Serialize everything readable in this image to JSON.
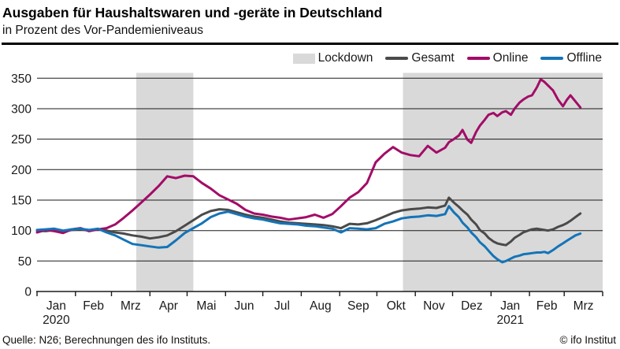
{
  "footer": {
    "source": "Quelle: N26; Berechnungen des ifo Instituts.",
    "copyright": "© ifo Institut"
  },
  "chart_data": {
    "type": "line",
    "title": "Ausgaben für Haushaltswaren und -geräte in Deutschland",
    "subtitle": "in Prozent des Vor-Pandemieniveaus",
    "xlabel": "",
    "ylabel": "",
    "ylim": [
      0,
      350
    ],
    "y_ticks": [
      0,
      50,
      100,
      150,
      200,
      250,
      300,
      350
    ],
    "grid": "horizontal",
    "legend_position": "top-right",
    "lockdown_label": "Lockdown",
    "band_color": "#d9d9d9",
    "x_unit": "days since 2020-01-01",
    "x_range_days": [
      0,
      456
    ],
    "x_ticks_days": [
      0,
      31,
      60,
      91,
      121,
      152,
      182,
      213,
      244,
      274,
      305,
      335,
      366,
      397,
      425,
      456
    ],
    "x_tick_labels": [
      "Jan",
      "Feb",
      "Mrz",
      "Apr",
      "Mai",
      "Jun",
      "Jul",
      "Aug",
      "Sep",
      "Okt",
      "Nov",
      "Dez",
      "Jan",
      "Feb",
      "Mrz"
    ],
    "year_labels": [
      {
        "label": "2020",
        "day_center": 15.5
      },
      {
        "label": "2021",
        "day_center": 381.5
      }
    ],
    "lockdown_bands_days": [
      [
        80,
        126
      ],
      [
        295,
        456
      ]
    ],
    "days": [
      0,
      7,
      14,
      21,
      28,
      35,
      42,
      49,
      56,
      63,
      70,
      77,
      84,
      91,
      98,
      105,
      112,
      119,
      126,
      133,
      140,
      147,
      154,
      161,
      168,
      175,
      182,
      189,
      196,
      203,
      210,
      217,
      224,
      231,
      238,
      245,
      252,
      259,
      266,
      273,
      280,
      287,
      294,
      301,
      308,
      315,
      322,
      329,
      332,
      336,
      340,
      343,
      347,
      350,
      354,
      357,
      361,
      364,
      368,
      371,
      375,
      378,
      382,
      385,
      389,
      392,
      396,
      399,
      403,
      406,
      409,
      412,
      416,
      420,
      424,
      427,
      430,
      434,
      438
    ],
    "series": [
      {
        "name": "Gesamt",
        "color": "#4a4a4a",
        "values": [
          100,
          99,
          101,
          98,
          101,
          102,
          100,
          102,
          100,
          97,
          95,
          92,
          90,
          87,
          89,
          92,
          99,
          108,
          117,
          126,
          132,
          135,
          134,
          130,
          126,
          123,
          121,
          118,
          115,
          113,
          112,
          111,
          110,
          109,
          107,
          104,
          111,
          110,
          112,
          117,
          123,
          129,
          133,
          135,
          136,
          138,
          137,
          141,
          154,
          146,
          139,
          133,
          126,
          118,
          110,
          101,
          95,
          88,
          82,
          79,
          77,
          76,
          82,
          88,
          93,
          97,
          100,
          102,
          103,
          102,
          101,
          100,
          102,
          106,
          109,
          112,
          116,
          122,
          128
        ]
      },
      {
        "name": "Online",
        "color": "#a30c67",
        "values": [
          97,
          101,
          99,
          96,
          102,
          104,
          99,
          102,
          104,
          110,
          121,
          133,
          146,
          159,
          173,
          189,
          186,
          190,
          189,
          178,
          169,
          158,
          151,
          144,
          134,
          128,
          126,
          123,
          121,
          118,
          120,
          122,
          126,
          121,
          127,
          140,
          154,
          163,
          178,
          212,
          226,
          237,
          228,
          224,
          222,
          239,
          228,
          236,
          245,
          250,
          256,
          265,
          249,
          244,
          262,
          272,
          282,
          290,
          293,
          288,
          294,
          296,
          290,
          300,
          310,
          315,
          320,
          322,
          335,
          348,
          344,
          338,
          330,
          315,
          304,
          314,
          322,
          312,
          302
        ]
      },
      {
        "name": "Offline",
        "color": "#1474b8",
        "values": [
          101,
          102,
          103,
          100,
          102,
          103,
          101,
          103,
          97,
          92,
          85,
          78,
          76,
          74,
          72,
          73,
          84,
          96,
          104,
          112,
          122,
          128,
          131,
          127,
          123,
          120,
          118,
          115,
          112,
          111,
          110,
          108,
          107,
          105,
          103,
          97,
          104,
          103,
          102,
          104,
          111,
          115,
          120,
          122,
          123,
          125,
          124,
          127,
          140,
          130,
          122,
          113,
          105,
          97,
          89,
          81,
          74,
          67,
          58,
          53,
          48,
          50,
          54,
          57,
          59,
          61,
          62,
          63,
          64,
          64,
          65,
          63,
          68,
          74,
          79,
          83,
          87,
          92,
          95
        ]
      }
    ]
  }
}
